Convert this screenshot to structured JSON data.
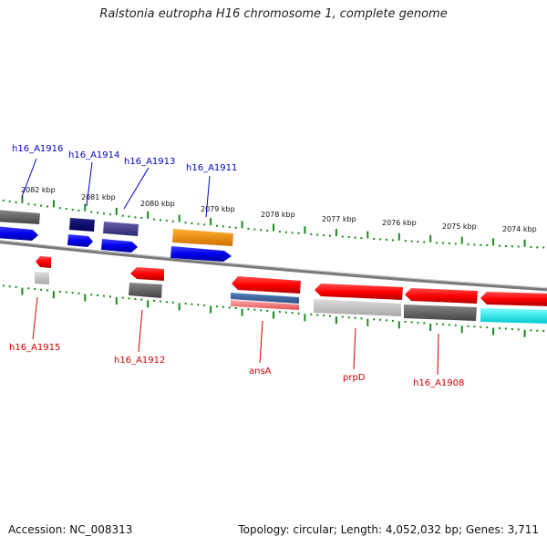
{
  "title": "Ralstonia eutropha H16 chromosome 1, complete genome",
  "footer": {
    "accession": "Accession: NC_008313",
    "stats": "Topology: circular; Length: 4,052,032 bp; Genes: 3,711"
  },
  "scale_ticks": [
    "2082 kbp",
    "2081 kbp",
    "2080 kbp",
    "2079 kbp",
    "2078 kbp",
    "2077 kbp",
    "2076 kbp",
    "2075 kbp",
    "2074 kbp"
  ],
  "gene_labels": {
    "h16_A1916": "h16_A1916",
    "h16_A1914": "h16_A1914",
    "h16_A1913": "h16_A1913",
    "h16_A1911": "h16_A1911",
    "h16_A1915": "h16_A1915",
    "h16_A1912": "h16_A1912",
    "ansA": "ansA",
    "prpD": "prpD",
    "h16_A1908": "h16_A1908"
  },
  "colors": {
    "forward_label": "#0000cc",
    "reverse_label": "#cc0000",
    "tick": "#1a8a1a",
    "backbone": "#777777"
  }
}
